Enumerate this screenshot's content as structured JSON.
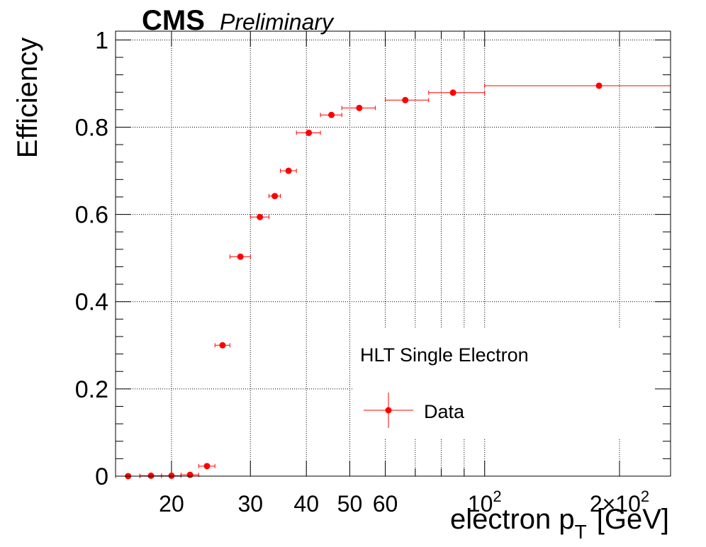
{
  "header": {
    "experiment": "CMS",
    "status": "Preliminary"
  },
  "legend": {
    "title": "HLT Single Electron",
    "entry": "Data",
    "placement": "lower-right"
  },
  "chart_data": {
    "type": "scatter",
    "xlabel_main": "electron p",
    "xlabel_sub": "T",
    "xlabel_unit": "[GeV]",
    "ylabel": "Efficiency",
    "xscale": "log",
    "xlim": [
      15,
      260
    ],
    "ylim": [
      0,
      1.02
    ],
    "grid": true,
    "marker_color": "#ff0000",
    "y_ticks": [
      {
        "value": 0,
        "label": "0"
      },
      {
        "value": 0.2,
        "label": "0.2"
      },
      {
        "value": 0.4,
        "label": "0.4"
      },
      {
        "value": 0.6,
        "label": "0.6"
      },
      {
        "value": 0.8,
        "label": "0.8"
      },
      {
        "value": 1.0,
        "label": "1"
      }
    ],
    "x_ticks": [
      {
        "value": 20,
        "label": "20"
      },
      {
        "value": 30,
        "label": "30"
      },
      {
        "value": 40,
        "label": "40"
      },
      {
        "value": 50,
        "label": "50"
      },
      {
        "value": 60,
        "label": "60"
      },
      {
        "value": 100,
        "label": "10",
        "sup": "2"
      },
      {
        "value": 200,
        "label": "2×10",
        "sup": "2"
      }
    ],
    "x_minor_ticks": [
      70,
      80,
      90
    ],
    "series": [
      {
        "points": [
          {
            "x": 16,
            "xlo": 15,
            "xhi": 17,
            "y": 0.0
          },
          {
            "x": 18,
            "xlo": 17,
            "xhi": 19,
            "y": 0.001
          },
          {
            "x": 20,
            "xlo": 19,
            "xhi": 21,
            "y": 0.001
          },
          {
            "x": 22,
            "xlo": 21,
            "xhi": 23,
            "y": 0.003
          },
          {
            "x": 24,
            "xlo": 23,
            "xhi": 25,
            "y": 0.023
          },
          {
            "x": 26,
            "xlo": 25,
            "xhi": 27,
            "y": 0.3
          },
          {
            "x": 28.5,
            "xlo": 27,
            "xhi": 30,
            "y": 0.503
          },
          {
            "x": 31.5,
            "xlo": 30,
            "xhi": 33,
            "y": 0.594
          },
          {
            "x": 34,
            "xlo": 33,
            "xhi": 35,
            "y": 0.642
          },
          {
            "x": 36.5,
            "xlo": 35,
            "xhi": 38,
            "y": 0.7
          },
          {
            "x": 40.5,
            "xlo": 38,
            "xhi": 43,
            "y": 0.787
          },
          {
            "x": 45.5,
            "xlo": 43,
            "xhi": 48,
            "y": 0.828
          },
          {
            "x": 52.5,
            "xlo": 48,
            "xhi": 57,
            "y": 0.844
          },
          {
            "x": 66.5,
            "xlo": 60,
            "xhi": 75,
            "y": 0.862
          },
          {
            "x": 85,
            "xlo": 75,
            "xhi": 100,
            "y": 0.879
          },
          {
            "x": 180,
            "xlo": 100,
            "xhi": 260,
            "y": 0.895
          }
        ]
      }
    ]
  }
}
